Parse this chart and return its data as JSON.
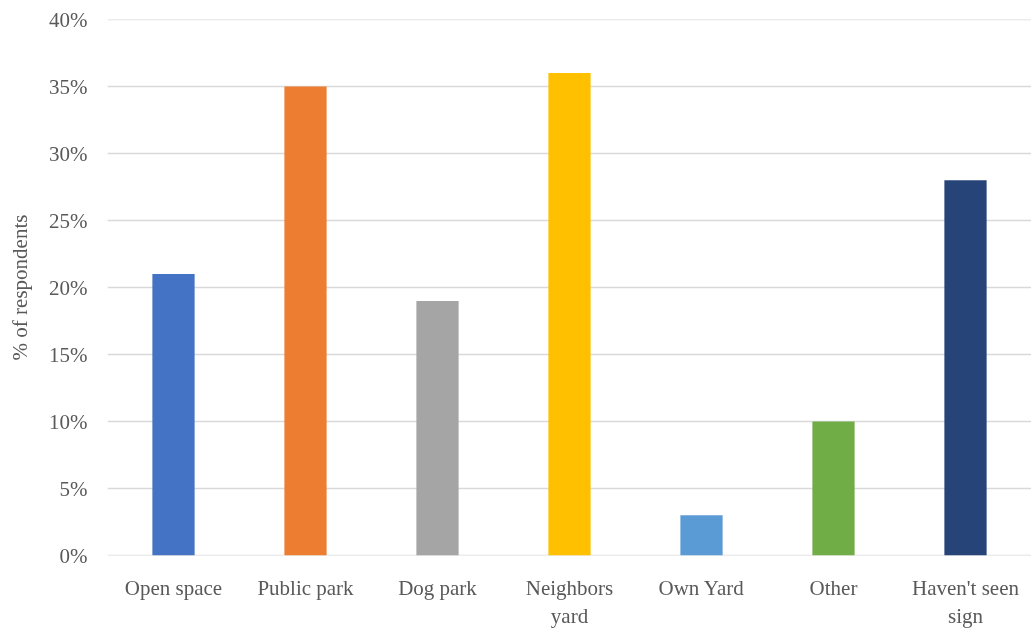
{
  "chart_data": {
    "type": "bar",
    "ylabel": "% of respondents",
    "categories": [
      "Open space",
      "Public park",
      "Dog park",
      "Neighbors yard",
      "Own Yard",
      "Other",
      "Haven't seen sign"
    ],
    "values": [
      21,
      35,
      19,
      36,
      3,
      10,
      28
    ],
    "colors": [
      "#4472c4",
      "#ed7d31",
      "#a5a5a5",
      "#ffc000",
      "#5b9bd5",
      "#70ad47",
      "#264478"
    ],
    "ylim": [
      0,
      40
    ],
    "yticks": [
      {
        "value": 0,
        "label": "0%"
      },
      {
        "value": 5,
        "label": "5%"
      },
      {
        "value": 10,
        "label": "10%"
      },
      {
        "value": 15,
        "label": "15%"
      },
      {
        "value": 20,
        "label": "20%"
      },
      {
        "value": 25,
        "label": "25%"
      },
      {
        "value": 30,
        "label": "30%"
      },
      {
        "value": 35,
        "label": "35%"
      },
      {
        "value": 40,
        "label": "40%"
      }
    ],
    "grid": "y"
  }
}
